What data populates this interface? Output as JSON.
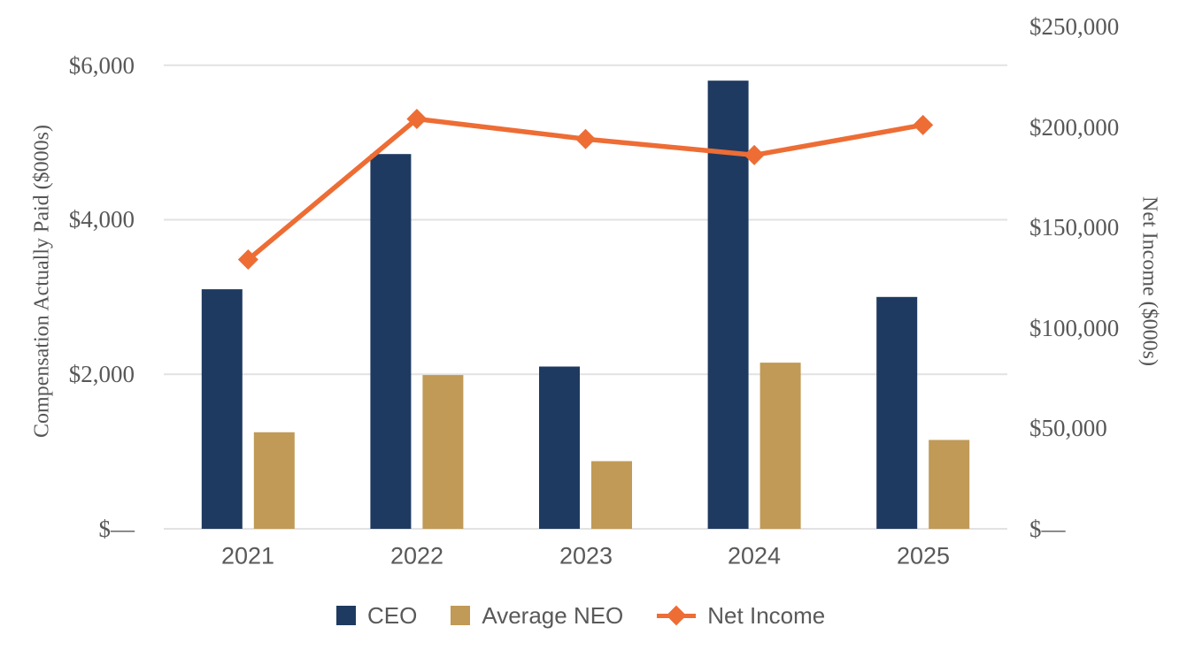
{
  "chart_data": {
    "type": "combo (bar + line, dual axis)",
    "categories": [
      "2021",
      "2022",
      "2023",
      "2024",
      "2025"
    ],
    "series": [
      {
        "name": "CEO",
        "kind": "bar",
        "axis": "left",
        "color": "#1F3A60",
        "values": [
          3100,
          4850,
          2100,
          5800,
          3000
        ]
      },
      {
        "name": "Average NEO",
        "kind": "bar",
        "axis": "left",
        "color": "#C09A56",
        "values": [
          1250,
          1990,
          875,
          2150,
          1150
        ]
      },
      {
        "name": "Net Income",
        "kind": "line",
        "axis": "right",
        "color": "#ED6D35",
        "marker": "diamond",
        "values": [
          134000,
          204000,
          194000,
          186000,
          201000
        ]
      }
    ],
    "left_axis": {
      "title": "Compensation Actually Paid ($000s)",
      "tick_values": [
        0,
        2000,
        4000,
        6000
      ],
      "tick_labels": [
        "$—",
        "$2,000",
        "$4,000",
        "$6,000"
      ],
      "range": [
        0,
        6500
      ]
    },
    "right_axis": {
      "title": "Net Income ($000s)",
      "tick_values": [
        0,
        50000,
        100000,
        150000,
        200000,
        250000
      ],
      "tick_labels": [
        "$—",
        "$50,000",
        "$100,000",
        "$150,000",
        "$200,000",
        "$250,000"
      ],
      "range": [
        0,
        250000
      ]
    },
    "legend": {
      "position": "bottom",
      "entries": [
        "CEO",
        "Average NEO",
        "Net Income"
      ]
    },
    "grid": "horizontal gridlines at left-axis ticks",
    "gridline_color": "#E2E2E2",
    "text_color": "#595959"
  }
}
